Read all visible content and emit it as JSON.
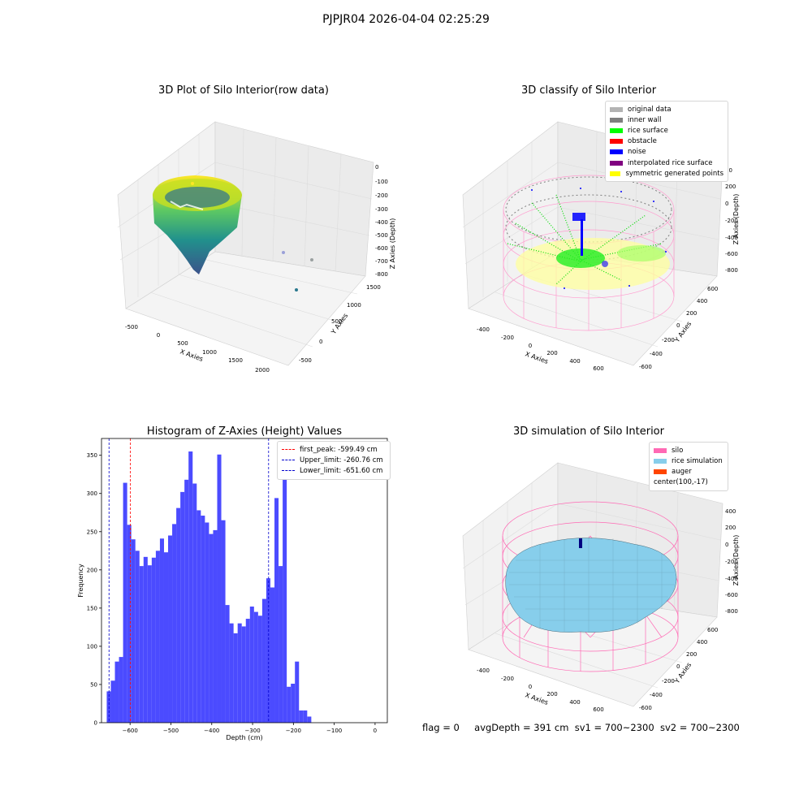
{
  "suptitle": "PJPJR04 2026-04-04 02:25:29",
  "chart_data": [
    {
      "type": "scatter",
      "subtype": "3d",
      "title": "3D Plot of Silo Interior(row data)",
      "xlabel": "X Axies",
      "ylabel": "Y Axies",
      "zlabel": "Z Axies (Depth)",
      "xticks": [
        -500,
        0,
        500,
        1000,
        1500,
        2000
      ],
      "yticks": [
        -500,
        0,
        500,
        1000,
        1500
      ],
      "zticks": [
        0,
        -100,
        -200,
        -300,
        -400,
        -500,
        -600,
        -700,
        -800
      ],
      "colormap": "viridis"
    },
    {
      "type": "scatter",
      "subtype": "3d",
      "title": "3D classify of Silo Interior",
      "xlabel": "X Axies",
      "ylabel": "Y Axies",
      "zlabel": "Z Axies (Depth)",
      "xticks": [
        -400,
        -200,
        0,
        200,
        400,
        600
      ],
      "yticks": [
        -600,
        -400,
        -200,
        0,
        200,
        400,
        600
      ],
      "zticks": [
        200,
        0,
        -200,
        -400,
        -600,
        -800
      ],
      "zticks_partial_top": "00",
      "legend": [
        {
          "label": "original data",
          "color": "#b3b3b3"
        },
        {
          "label": "inner wall",
          "color": "#7f7f7f"
        },
        {
          "label": "rice surface",
          "color": "#00ff00"
        },
        {
          "label": "obstacle",
          "color": "#ff0000"
        },
        {
          "label": "noise",
          "color": "#0000ff"
        },
        {
          "label": "interpolated rice surface",
          "color": "#800080"
        },
        {
          "label": "symmetric generated points",
          "color": "#ffff00"
        }
      ]
    },
    {
      "type": "bar",
      "subtype": "histogram",
      "title": "Histogram of Z-Axies (Height) Values",
      "xlabel": "Depth (cm)",
      "ylabel": "Frequency",
      "xlim": [
        -670,
        30
      ],
      "ylim": [
        0,
        372
      ],
      "xticks": [
        -600,
        -500,
        -400,
        -300,
        -200,
        -100,
        0
      ],
      "yticks": [
        0,
        50,
        100,
        150,
        200,
        250,
        300,
        350
      ],
      "bar_color": "#4b4bff",
      "bin_start": -657.2,
      "bin_width": 10.02,
      "counts": [
        41,
        55,
        80,
        86,
        314,
        259,
        240,
        225,
        205,
        217,
        206,
        216,
        225,
        241,
        223,
        245,
        260,
        281,
        302,
        318,
        355,
        313,
        278,
        271,
        262,
        247,
        252,
        351,
        265,
        154,
        130,
        117,
        130,
        126,
        136,
        152,
        145,
        140,
        162,
        189,
        177,
        294,
        205,
        345,
        47,
        51,
        80,
        16,
        16,
        8
      ],
      "vlines": [
        {
          "label": "first_peak: -599.49 cm",
          "x": -599.49,
          "color": "#ff0000"
        },
        {
          "label": "Upper_limit: -260.76 cm",
          "x": -260.76,
          "color": "#0000cc"
        },
        {
          "label": "Lower_limit: -651.60 cm",
          "x": -651.6,
          "color": "#0000cc"
        }
      ]
    },
    {
      "type": "area",
      "subtype": "3d-surface",
      "title": "3D simulation of Silo Interior",
      "xlabel": "X Axies",
      "ylabel": "Y Axies",
      "zlabel": "Z Axies (Depth)",
      "xticks": [
        -400,
        -200,
        0,
        200,
        400,
        600
      ],
      "yticks": [
        -600,
        -400,
        -200,
        0,
        200,
        400,
        600
      ],
      "zticks": [
        400,
        200,
        0,
        -200,
        -400,
        -600,
        -800
      ],
      "legend": [
        {
          "label": "silo",
          "color": "#ff69b4"
        },
        {
          "label": "rice simulation",
          "color": "#87ceeb"
        },
        {
          "label": "auger",
          "color": "#ff4500"
        },
        {
          "label": "center(100,-17)",
          "color": ""
        }
      ]
    }
  ],
  "footer": {
    "flag": "flag = 0",
    "avg_depth": "avgDepth = 391 cm",
    "sv1": "sv1 = 700~2300",
    "sv2": "sv2 = 700~2300"
  }
}
